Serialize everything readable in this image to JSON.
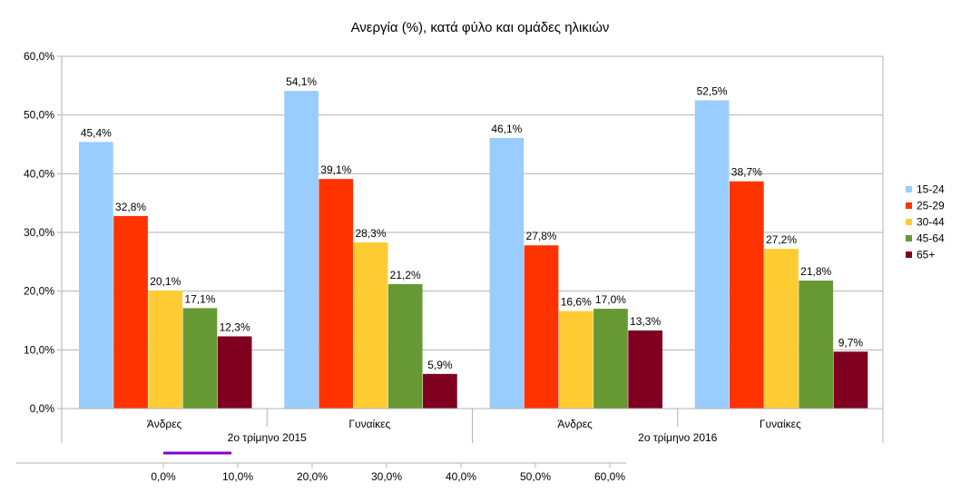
{
  "chart_data": {
    "type": "bar",
    "title": "Ανεργία (%), κατά φύλο και ομάδες ηλικιών",
    "xlabel": "",
    "ylabel": "",
    "ylim": [
      0,
      60
    ],
    "yticks": [
      "0,0%",
      "10,0%",
      "20,0%",
      "30,0%",
      "40,0%",
      "50,0%",
      "60,0%"
    ],
    "grid": true,
    "legend_position": "right",
    "categories": [
      "Άνδρες",
      "Γυναίκες",
      "Άνδρες",
      "Γυναίκες"
    ],
    "category_groups": [
      {
        "label": "2ο τρίμηνο 2015",
        "span": [
          0,
          1
        ]
      },
      {
        "label": "2ο τρίμηνο 2016",
        "span": [
          2,
          3
        ]
      }
    ],
    "series": [
      {
        "name": "15-24",
        "color": "#99ccff",
        "values": [
          45.4,
          54.1,
          46.1,
          52.5
        ],
        "labels": [
          "45,4%",
          "54,1%",
          "46,1%",
          "52,5%"
        ]
      },
      {
        "name": "25-29",
        "color": "#ff3300",
        "values": [
          32.8,
          39.1,
          27.8,
          38.7
        ],
        "labels": [
          "32,8%",
          "39,1%",
          "27,8%",
          "38,7%"
        ]
      },
      {
        "name": "30-44",
        "color": "#ffcc33",
        "values": [
          20.1,
          28.3,
          16.6,
          27.2
        ],
        "labels": [
          "20,1%",
          "28,3%",
          "16,6%",
          "27,2%"
        ]
      },
      {
        "name": "45-64",
        "color": "#669933",
        "values": [
          17.1,
          21.2,
          17.0,
          21.8
        ],
        "labels": [
          "17,1%",
          "21,2%",
          "17,0%",
          "21,8%"
        ]
      },
      {
        "name": "65+",
        "color": "#800020",
        "values": [
          12.3,
          5.9,
          13.3,
          9.7
        ],
        "labels": [
          "12,3%",
          "5,9%",
          "13,3%",
          "9,7%"
        ]
      }
    ],
    "secondary_axis": {
      "ticks": [
        "0,0%",
        "10,0%",
        "20,0%",
        "30,0%",
        "40,0%",
        "50,0%",
        "60,0%"
      ],
      "stray_bar_color": "#8800cc"
    }
  }
}
